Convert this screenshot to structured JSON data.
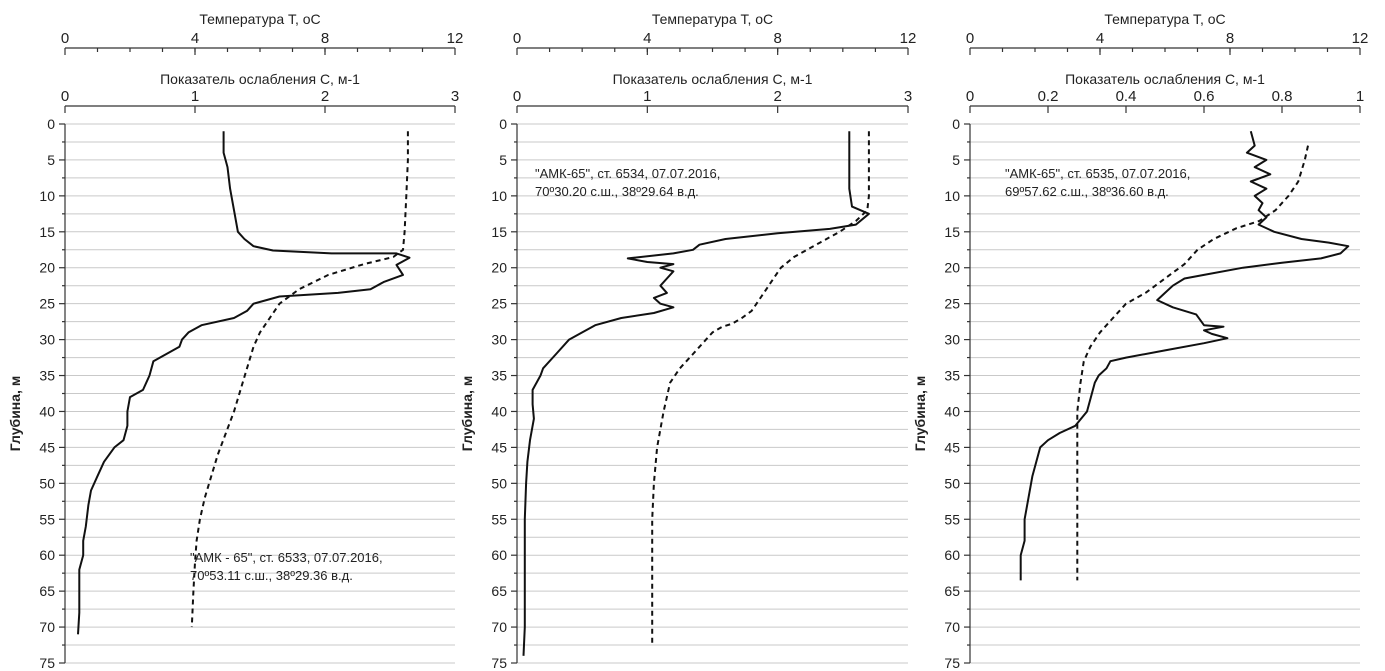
{
  "chart_data": [
    {
      "type": "line",
      "top_axis_title": "Температура T, оC",
      "top_axis_ticks": [
        "0",
        "4",
        "8",
        "12"
      ],
      "top_axis_range": [
        0,
        12
      ],
      "second_axis_title": "Показатель ослабления C, м-1",
      "second_axis_ticks": [
        "0",
        "1",
        "2",
        "3"
      ],
      "second_axis_range": [
        0,
        3
      ],
      "ylabel": "Глубина, м",
      "yticks": [
        "0",
        "5",
        "10",
        "15",
        "20",
        "25",
        "30",
        "35",
        "40",
        "45",
        "50",
        "55",
        "60",
        "65",
        "70",
        "75"
      ],
      "ylim": [
        0,
        75
      ],
      "y_inverted": true,
      "grid": true,
      "annotation": [
        "\"АМК - 65\", ст. 6533, 07.07.2016,",
        "70º53.11 с.ш., 38º29.36 в.д."
      ],
      "series": [
        {
          "style": "solid",
          "axis": "C",
          "points": [
            [
              1.22,
              1
            ],
            [
              1.22,
              4
            ],
            [
              1.25,
              6
            ],
            [
              1.27,
              9
            ],
            [
              1.3,
              12
            ],
            [
              1.33,
              15
            ],
            [
              1.38,
              16
            ],
            [
              1.45,
              17
            ],
            [
              1.6,
              17.6
            ],
            [
              2.05,
              18
            ],
            [
              2.55,
              18
            ],
            [
              2.65,
              18.6
            ],
            [
              2.55,
              19.6
            ],
            [
              2.6,
              21
            ],
            [
              2.45,
              22
            ],
            [
              2.35,
              23
            ],
            [
              2.1,
              23.5
            ],
            [
              1.65,
              24
            ],
            [
              1.45,
              25
            ],
            [
              1.4,
              26
            ],
            [
              1.3,
              27
            ],
            [
              1.05,
              28
            ],
            [
              0.95,
              29
            ],
            [
              0.9,
              30
            ],
            [
              0.88,
              31
            ],
            [
              0.78,
              32
            ],
            [
              0.68,
              33
            ],
            [
              0.65,
              35
            ],
            [
              0.6,
              37
            ],
            [
              0.5,
              38
            ],
            [
              0.48,
              40
            ],
            [
              0.48,
              42
            ],
            [
              0.45,
              44
            ],
            [
              0.38,
              45
            ],
            [
              0.3,
              47
            ],
            [
              0.25,
              49
            ],
            [
              0.2,
              51
            ],
            [
              0.18,
              53
            ],
            [
              0.16,
              56
            ],
            [
              0.14,
              58
            ],
            [
              0.14,
              60
            ],
            [
              0.11,
              62
            ],
            [
              0.11,
              65
            ],
            [
              0.11,
              68
            ],
            [
              0.1,
              71
            ]
          ]
        },
        {
          "style": "dashed",
          "axis": "T",
          "points": [
            [
              10.55,
              1
            ],
            [
              10.55,
              5
            ],
            [
              10.5,
              10
            ],
            [
              10.45,
              15
            ],
            [
              10.4,
              17.5
            ],
            [
              10.1,
              18.5
            ],
            [
              9.2,
              19.5
            ],
            [
              8.1,
              21
            ],
            [
              7.2,
              23
            ],
            [
              6.6,
              25
            ],
            [
              6.3,
              27
            ],
            [
              6.0,
              29
            ],
            [
              5.8,
              31
            ],
            [
              5.6,
              34
            ],
            [
              5.4,
              37
            ],
            [
              5.2,
              40
            ],
            [
              4.95,
              43
            ],
            [
              4.7,
              46
            ],
            [
              4.5,
              49
            ],
            [
              4.3,
              52
            ],
            [
              4.15,
              55
            ],
            [
              4.05,
              58
            ],
            [
              4.0,
              61
            ],
            [
              3.95,
              65
            ],
            [
              3.9,
              70
            ]
          ]
        }
      ]
    },
    {
      "type": "line",
      "top_axis_title": "Температура T, оC",
      "top_axis_ticks": [
        "0",
        "4",
        "8",
        "12"
      ],
      "top_axis_range": [
        0,
        12
      ],
      "second_axis_title": "Показатель ослабления C, м-1",
      "second_axis_ticks": [
        "0",
        "1",
        "2",
        "3"
      ],
      "second_axis_range": [
        0,
        3
      ],
      "ylabel": "Глубина, м",
      "yticks": [
        "0",
        "5",
        "10",
        "15",
        "20",
        "25",
        "30",
        "35",
        "40",
        "45",
        "50",
        "55",
        "60",
        "65",
        "70",
        "75"
      ],
      "ylim": [
        0,
        75
      ],
      "y_inverted": true,
      "grid": true,
      "annotation": [
        "\"АМК-65\", ст. 6534, 07.07.2016,",
        "70º30.20 с.ш., 38º29.64 в.д."
      ],
      "series": [
        {
          "style": "solid",
          "axis": "C",
          "points": [
            [
              2.55,
              1
            ],
            [
              2.55,
              5
            ],
            [
              2.55,
              9
            ],
            [
              2.57,
              11.5
            ],
            [
              2.7,
              12.5
            ],
            [
              2.6,
              14
            ],
            [
              2.4,
              14.6
            ],
            [
              2.0,
              15.2
            ],
            [
              1.6,
              16
            ],
            [
              1.4,
              16.8
            ],
            [
              1.35,
              17.5
            ],
            [
              1.2,
              18
            ],
            [
              0.85,
              18.7
            ],
            [
              1.0,
              19.2
            ],
            [
              1.2,
              19.5
            ],
            [
              1.1,
              20
            ],
            [
              1.2,
              20.5
            ],
            [
              1.15,
              21.5
            ],
            [
              1.1,
              22.5
            ],
            [
              1.15,
              23.5
            ],
            [
              1.05,
              24.2
            ],
            [
              1.1,
              25
            ],
            [
              1.2,
              25.5
            ],
            [
              1.05,
              26.3
            ],
            [
              0.8,
              27
            ],
            [
              0.6,
              28
            ],
            [
              0.5,
              29
            ],
            [
              0.4,
              30
            ],
            [
              0.3,
              32
            ],
            [
              0.2,
              34
            ],
            [
              0.18,
              35
            ],
            [
              0.12,
              37
            ],
            [
              0.12,
              39
            ],
            [
              0.13,
              41
            ],
            [
              0.1,
              44
            ],
            [
              0.08,
              47
            ],
            [
              0.07,
              50
            ],
            [
              0.06,
              55
            ],
            [
              0.06,
              60
            ],
            [
              0.06,
              65
            ],
            [
              0.06,
              70
            ],
            [
              0.05,
              74
            ]
          ]
        },
        {
          "style": "dashed",
          "axis": "T",
          "points": [
            [
              10.8,
              1
            ],
            [
              10.8,
              6
            ],
            [
              10.8,
              10
            ],
            [
              10.75,
              12
            ],
            [
              10.4,
              13.5
            ],
            [
              9.9,
              15
            ],
            [
              9.3,
              16.5
            ],
            [
              8.9,
              17.5
            ],
            [
              8.5,
              18.5
            ],
            [
              8.1,
              20
            ],
            [
              7.8,
              22
            ],
            [
              7.5,
              24
            ],
            [
              7.2,
              26
            ],
            [
              6.9,
              27
            ],
            [
              6.6,
              27.8
            ],
            [
              6.3,
              28.2
            ],
            [
              6.0,
              29
            ],
            [
              5.8,
              30
            ],
            [
              5.4,
              32
            ],
            [
              5.0,
              34
            ],
            [
              4.7,
              36
            ],
            [
              4.5,
              40
            ],
            [
              4.3,
              45
            ],
            [
              4.2,
              50
            ],
            [
              4.15,
              55
            ],
            [
              4.15,
              60
            ],
            [
              4.15,
              65
            ],
            [
              4.15,
              70
            ],
            [
              4.15,
              72.5
            ]
          ]
        }
      ]
    },
    {
      "type": "line",
      "top_axis_title": "Температура T, оC",
      "top_axis_ticks": [
        "0",
        "4",
        "8",
        "12"
      ],
      "top_axis_range": [
        0,
        12
      ],
      "second_axis_title": "Показатель ослабления C, м-1",
      "second_axis_ticks": [
        "0",
        "0.2",
        "0.4",
        "0.6",
        "0.8",
        "1"
      ],
      "second_axis_range": [
        0,
        1
      ],
      "ylabel": "Глубина, м",
      "yticks": [
        "0",
        "5",
        "10",
        "15",
        "20",
        "25",
        "30",
        "35",
        "40",
        "45",
        "50",
        "55",
        "60",
        "65",
        "70",
        "75"
      ],
      "ylim": [
        0,
        75
      ],
      "y_inverted": true,
      "grid": true,
      "annotation": [
        "\"АМК-65\", ст. 6535, 07.07.2016,",
        "69º57.62 с.ш., 38º36.60 в.д."
      ],
      "series": [
        {
          "style": "solid",
          "axis": "C",
          "points": [
            [
              0.72,
              1
            ],
            [
              0.73,
              3
            ],
            [
              0.71,
              4
            ],
            [
              0.76,
              5
            ],
            [
              0.73,
              6
            ],
            [
              0.77,
              7
            ],
            [
              0.72,
              8
            ],
            [
              0.76,
              9
            ],
            [
              0.73,
              10
            ],
            [
              0.75,
              11
            ],
            [
              0.74,
              12
            ],
            [
              0.76,
              13
            ],
            [
              0.74,
              14
            ],
            [
              0.78,
              15
            ],
            [
              0.85,
              16
            ],
            [
              0.92,
              16.5
            ],
            [
              0.97,
              17
            ],
            [
              0.95,
              18
            ],
            [
              0.9,
              18.7
            ],
            [
              0.8,
              19.3
            ],
            [
              0.7,
              20
            ],
            [
              0.6,
              21
            ],
            [
              0.55,
              21.5
            ],
            [
              0.52,
              22.5
            ],
            [
              0.5,
              23.5
            ],
            [
              0.48,
              24.5
            ],
            [
              0.52,
              25.5
            ],
            [
              0.58,
              26.5
            ],
            [
              0.6,
              28
            ],
            [
              0.65,
              28.2
            ],
            [
              0.6,
              28.7
            ],
            [
              0.62,
              29.2
            ],
            [
              0.66,
              29.8
            ],
            [
              0.6,
              30.5
            ],
            [
              0.5,
              31.5
            ],
            [
              0.4,
              32.5
            ],
            [
              0.36,
              33
            ],
            [
              0.35,
              34
            ],
            [
              0.33,
              35
            ],
            [
              0.32,
              36
            ],
            [
              0.31,
              38
            ],
            [
              0.3,
              40
            ],
            [
              0.27,
              42
            ],
            [
              0.23,
              43
            ],
            [
              0.2,
              44
            ],
            [
              0.18,
              45
            ],
            [
              0.17,
              47
            ],
            [
              0.16,
              49
            ],
            [
              0.15,
              52
            ],
            [
              0.14,
              55
            ],
            [
              0.14,
              58
            ],
            [
              0.13,
              60
            ],
            [
              0.13,
              62
            ],
            [
              0.13,
              63.5
            ]
          ]
        },
        {
          "style": "dashed",
          "axis": "T",
          "points": [
            [
              10.4,
              3
            ],
            [
              10.3,
              5
            ],
            [
              10.1,
              8
            ],
            [
              9.8,
              10
            ],
            [
              9.4,
              12
            ],
            [
              8.9,
              13.5
            ],
            [
              8.2,
              14.5
            ],
            [
              7.5,
              16
            ],
            [
              7.0,
              17.5
            ],
            [
              6.6,
              19.5
            ],
            [
              6.0,
              21.5
            ],
            [
              5.4,
              23.5
            ],
            [
              4.8,
              25
            ],
            [
              4.4,
              27
            ],
            [
              4.0,
              29
            ],
            [
              3.7,
              31
            ],
            [
              3.5,
              33
            ],
            [
              3.4,
              36
            ],
            [
              3.3,
              40
            ],
            [
              3.3,
              45
            ],
            [
              3.3,
              50
            ],
            [
              3.3,
              55
            ],
            [
              3.3,
              60
            ],
            [
              3.3,
              63.5
            ]
          ]
        }
      ]
    }
  ]
}
